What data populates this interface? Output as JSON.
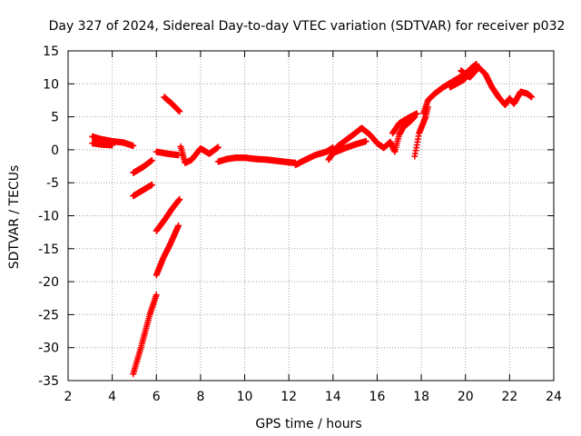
{
  "chart_data": {
    "type": "scatter",
    "title": "Day 327 of 2024, Sidereal Day-to-day VTEC variation (SDTVAR) for receiver p032",
    "xlabel": "GPS time / hours",
    "ylabel": "SDTVAR / TECUs",
    "xlim": [
      2,
      24
    ],
    "ylim": [
      -35,
      15
    ],
    "xticks": [
      "2",
      "4",
      "6",
      "8",
      "10",
      "12",
      "14",
      "16",
      "18",
      "20",
      "22",
      "24"
    ],
    "yticks": [
      "15",
      "10",
      "5",
      "0",
      "-5",
      "-10",
      "-15",
      "-20",
      "-25",
      "-30",
      "-35"
    ],
    "grid": true,
    "marker": "+",
    "series": [
      {
        "name": "SDTVAR",
        "color": "#ff0000",
        "segments": [
          [
            [
              3.1,
              2.0
            ],
            [
              3.5,
              1.6
            ],
            [
              4.0,
              1.3
            ],
            [
              4.5,
              1.1
            ],
            [
              4.95,
              0.6
            ]
          ],
          [
            [
              3.1,
              1.0
            ],
            [
              3.5,
              0.8
            ],
            [
              4.0,
              0.7
            ]
          ],
          [
            [
              4.95,
              -3.5
            ],
            [
              5.4,
              -2.6
            ],
            [
              5.8,
              -1.6
            ]
          ],
          [
            [
              4.95,
              -7.0
            ],
            [
              5.4,
              -6.1
            ],
            [
              5.8,
              -5.3
            ]
          ],
          [
            [
              4.95,
              -34.0
            ],
            [
              5.3,
              -30.0
            ],
            [
              5.7,
              -25.0
            ],
            [
              6.0,
              -22.0
            ]
          ],
          [
            [
              6.0,
              -19.0
            ],
            [
              6.3,
              -16.5
            ],
            [
              6.6,
              -14.5
            ],
            [
              7.0,
              -11.5
            ]
          ],
          [
            [
              6.0,
              -12.3
            ],
            [
              6.4,
              -10.5
            ],
            [
              6.7,
              -9.0
            ],
            [
              7.05,
              -7.5
            ]
          ],
          [
            [
              6.35,
              8.0
            ],
            [
              6.7,
              7.0
            ],
            [
              7.05,
              5.8
            ]
          ],
          [
            [
              6.0,
              -0.3
            ],
            [
              6.5,
              -0.6
            ],
            [
              7.0,
              -0.8
            ]
          ],
          [
            [
              7.1,
              0.5
            ],
            [
              7.3,
              -2.0
            ],
            [
              7.6,
              -1.5
            ],
            [
              8.0,
              0.2
            ],
            [
              8.4,
              -0.6
            ],
            [
              8.8,
              0.4
            ]
          ],
          [
            [
              8.8,
              -1.8
            ],
            [
              9.2,
              -1.4
            ],
            [
              9.6,
              -1.2
            ],
            [
              10.0,
              -1.2
            ],
            [
              10.5,
              -1.4
            ],
            [
              11.0,
              -1.5
            ],
            [
              11.5,
              -1.7
            ],
            [
              12.0,
              -1.9
            ],
            [
              12.3,
              -2.0
            ]
          ],
          [
            [
              12.3,
              -2.3
            ],
            [
              12.7,
              -1.6
            ],
            [
              13.2,
              -0.8
            ],
            [
              13.7,
              -0.3
            ],
            [
              14.0,
              0.3
            ]
          ],
          [
            [
              13.8,
              -1.5
            ],
            [
              14.2,
              0.5
            ],
            [
              14.6,
              1.5
            ],
            [
              15.0,
              2.5
            ],
            [
              15.3,
              3.3
            ],
            [
              15.7,
              2.2
            ],
            [
              16.0,
              1.0
            ],
            [
              16.3,
              0.3
            ]
          ],
          [
            [
              14.0,
              -0.5
            ],
            [
              14.5,
              0.2
            ],
            [
              15.0,
              0.8
            ],
            [
              15.5,
              1.3
            ]
          ],
          [
            [
              16.3,
              0.3
            ],
            [
              16.6,
              1.2
            ],
            [
              16.8,
              -0.3
            ],
            [
              17.0,
              2.3
            ],
            [
              17.2,
              3.5
            ],
            [
              17.5,
              4.3
            ],
            [
              17.7,
              5.0
            ]
          ],
          [
            [
              16.7,
              2.5
            ],
            [
              17.0,
              4.0
            ],
            [
              17.4,
              4.8
            ],
            [
              17.8,
              5.5
            ]
          ],
          [
            [
              17.7,
              -1.0
            ],
            [
              17.9,
              2.5
            ],
            [
              18.2,
              5.0
            ],
            [
              18.3,
              6.5
            ]
          ],
          [
            [
              18.1,
              5.5
            ],
            [
              18.3,
              7.5
            ],
            [
              18.6,
              8.5
            ],
            [
              19.0,
              9.5
            ],
            [
              19.5,
              10.5
            ],
            [
              20.0,
              11.5
            ],
            [
              20.3,
              12.5
            ],
            [
              20.5,
              13.0
            ]
          ],
          [
            [
              19.8,
              12.0
            ],
            [
              20.2,
              11.0
            ],
            [
              20.6,
              12.5
            ],
            [
              20.9,
              11.5
            ],
            [
              21.2,
              9.5
            ],
            [
              21.5,
              8.0
            ],
            [
              21.8,
              6.8
            ],
            [
              22.0,
              7.8
            ],
            [
              22.2,
              7.0
            ],
            [
              22.5,
              8.8
            ],
            [
              22.8,
              8.5
            ],
            [
              23.0,
              8.0
            ]
          ],
          [
            [
              19.3,
              9.5
            ],
            [
              19.7,
              10.2
            ],
            [
              20.0,
              10.8
            ]
          ]
        ]
      }
    ]
  }
}
